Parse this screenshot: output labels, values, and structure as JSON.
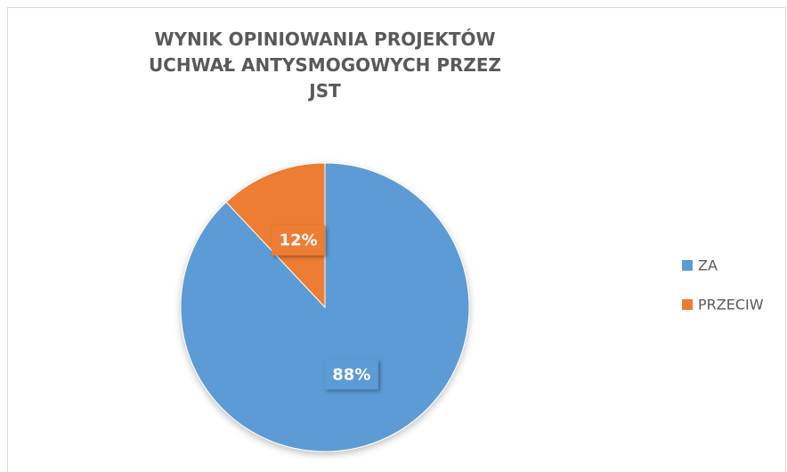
{
  "chart_data": {
    "type": "pie",
    "title": "WYNIK OPINIOWANIA PROJEKTÓW UCHWAŁ ANTYSMOGOWYCH PRZEZ JST",
    "categories": [
      "ZA",
      "PRZECIW"
    ],
    "values": [
      88,
      12
    ],
    "value_labels": [
      "88%",
      "12%"
    ],
    "colors": [
      "#5b9bd5",
      "#ed7d31"
    ],
    "legend": "right"
  }
}
